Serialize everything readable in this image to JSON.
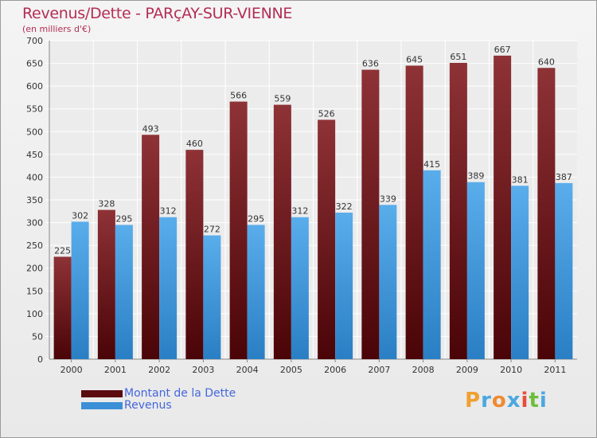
{
  "chart_data": {
    "type": "bar",
    "title": "Revenus/Dette - PARçAY-SUR-VIENNE",
    "subtitle": "(en milliers d'€)",
    "categories": [
      "2000",
      "2001",
      "2002",
      "2003",
      "2004",
      "2005",
      "2006",
      "2007",
      "2008",
      "2009",
      "2010",
      "2011"
    ],
    "series": [
      {
        "name": "Montant de la Dette",
        "color": "#7a1f24",
        "values": [
          225,
          328,
          493,
          460,
          566,
          559,
          526,
          636,
          645,
          651,
          667,
          640
        ]
      },
      {
        "name": "Revenus",
        "color": "#4a9fe0",
        "values": [
          302,
          295,
          312,
          272,
          295,
          312,
          322,
          339,
          415,
          389,
          381,
          387
        ]
      }
    ],
    "ylim": [
      0,
      700
    ],
    "yticks": [
      0,
      50,
      100,
      150,
      200,
      250,
      300,
      350,
      400,
      450,
      500,
      550,
      600,
      650,
      700
    ],
    "grid": true,
    "legend_position": "bottom-left"
  },
  "brand": {
    "letters": [
      {
        "char": "P",
        "color": "#f0a030"
      },
      {
        "char": "r",
        "color": "#4aa8e0"
      },
      {
        "char": "o",
        "color": "#f08a30"
      },
      {
        "char": "x",
        "color": "#4aa8e0"
      },
      {
        "char": "i",
        "color": "#e74c3c"
      },
      {
        "char": "t",
        "color": "#6cbf3c"
      },
      {
        "char": "i",
        "color": "#4aa8e0"
      }
    ]
  }
}
